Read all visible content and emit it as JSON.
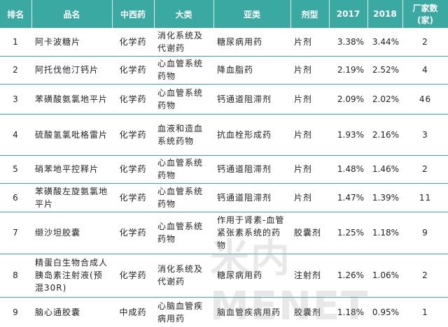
{
  "table": {
    "header": [
      "排名",
      "品名",
      "中西药",
      "大类",
      "亚类",
      "剂型",
      "2017",
      "2018",
      "厂家数(家)"
    ],
    "rows": [
      [
        "1",
        "阿卡波糖片",
        "化学药",
        "消化系统及代谢药",
        "糖尿病用药",
        "片剂",
        "3.38%",
        "3.44%",
        "2"
      ],
      [
        "2",
        "阿托伐他汀钙片",
        "化学药",
        "心血管系统药物",
        "降血脂药",
        "片剂",
        "2.19%",
        "2.52%",
        "4"
      ],
      [
        "3",
        "苯磺酸氨氯地平片",
        "化学药",
        "心血管系统药物",
        "钙通道阻滞剂",
        "片剂",
        "2.09%",
        "2.02%",
        "46"
      ],
      [
        "4",
        "硫酸氢氯吡格雷片",
        "化学药",
        "血液和造血系统药物",
        "抗血栓形成药",
        "片剂",
        "1.93%",
        "2.16%",
        "3"
      ],
      [
        "5",
        "硝苯地平控释片",
        "化学药",
        "心血管系统药物",
        "钙通道阻滞剂",
        "片剂",
        "1.48%",
        "1.46%",
        "2"
      ],
      [
        "6",
        "苯磺酸左旋氨氯地平片",
        "化学药",
        "心血管系统药物",
        "钙通道阻滞剂",
        "片剂",
        "1.47%",
        "1.39%",
        "11"
      ],
      [
        "7",
        "缬沙坦胶囊",
        "化学药",
        "心血管系统药物",
        "作用于肾素-血管紧张素系统的药物",
        "胶囊剂",
        "1.25%",
        "1.18%",
        "9"
      ],
      [
        "8",
        "精蛋白生物合成人胰岛素注射液(预混30R)",
        "化学药",
        "消化系统及代谢药",
        "糖尿病用药",
        "注射剂",
        "1.26%",
        "1.06%",
        "2"
      ],
      [
        "9",
        "脑心通胶囊",
        "中成药",
        "心脑血管疾病用药",
        "脑血管疾病用药",
        "胶囊剂",
        "1.18%",
        "0.95%",
        "1"
      ]
    ]
  },
  "watermark": "米内MENET"
}
